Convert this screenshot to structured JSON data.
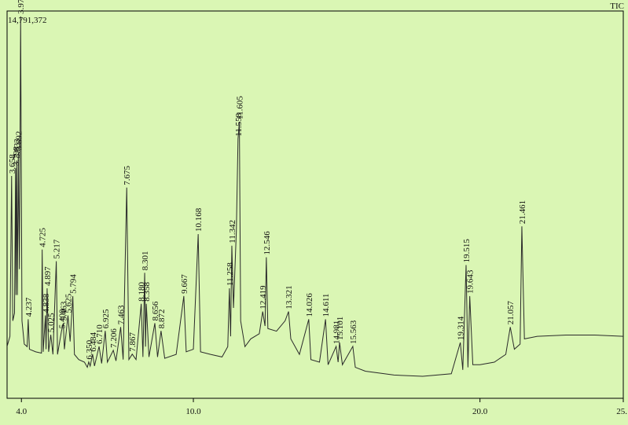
{
  "chart_data": {
    "type": "line",
    "x": [
      3.5,
      3.6,
      3.658,
      3.7,
      3.76,
      3.798,
      3.81,
      3.833,
      3.86,
      3.892,
      3.93,
      3.973,
      4.02,
      4.1,
      4.2,
      4.237,
      4.28,
      4.5,
      4.7,
      4.725,
      4.76,
      4.838,
      4.86,
      4.897,
      4.95,
      5.025,
      5.1,
      5.217,
      5.26,
      5.4,
      5.463,
      5.5,
      5.625,
      5.7,
      5.794,
      5.85,
      6.0,
      6.2,
      6.3,
      6.35,
      6.4,
      6.484,
      6.55,
      6.71,
      6.8,
      6.925,
      7.0,
      7.206,
      7.3,
      7.463,
      7.55,
      7.675,
      7.75,
      7.867,
      8.0,
      8.18,
      8.24,
      8.301,
      8.33,
      8.358,
      8.45,
      8.656,
      8.75,
      8.872,
      9.0,
      9.4,
      9.667,
      9.75,
      10.0,
      10.168,
      10.25,
      10.6,
      11.0,
      11.2,
      11.258,
      11.3,
      11.342,
      11.4,
      11.5,
      11.558,
      11.605,
      11.65,
      11.8,
      12.0,
      12.3,
      12.419,
      12.5,
      12.546,
      12.6,
      12.9,
      13.2,
      13.321,
      13.4,
      13.7,
      14.026,
      14.1,
      14.4,
      14.611,
      14.7,
      14.981,
      15.05,
      15.101,
      15.2,
      15.563,
      15.65,
      16.0,
      17.0,
      18.0,
      19.0,
      19.314,
      19.4,
      19.515,
      19.58,
      19.643,
      19.75,
      20.0,
      20.5,
      20.9,
      21.057,
      21.2,
      21.4,
      21.461,
      21.55,
      22.0,
      23.0,
      24.0,
      25.0
    ],
    "series": [
      {
        "name": "TIC",
        "color": "#2a2a2a",
        "values": [
          2010000,
          2400000,
          8610000,
          3000000,
          3300000,
          8910000,
          4000000,
          9210000,
          4000000,
          9510000,
          5000000,
          14791372,
          3000000,
          2100000,
          2000000,
          3060000,
          1900000,
          1800000,
          1750000,
          5760000,
          1800000,
          3210000,
          1900000,
          4260000,
          1800000,
          2460000,
          1700000,
          5310000,
          1700000,
          2610000,
          2910000,
          1900000,
          3210000,
          2200000,
          3960000,
          1700000,
          1500000,
          1400000,
          1200000,
          1410000,
          1250000,
          1710000,
          1250000,
          2010000,
          1350000,
          2610000,
          1400000,
          1860000,
          1450000,
          2760000,
          1500000,
          8160000,
          1500000,
          1710000,
          1500000,
          3660000,
          1600000,
          4860000,
          2000000,
          3660000,
          1600000,
          2910000,
          1600000,
          2610000,
          1550000,
          1700000,
          3960000,
          1800000,
          1900000,
          6360000,
          1800000,
          1700000,
          1600000,
          2000000,
          4260000,
          2400000,
          5910000,
          3500000,
          6500000,
          10050000,
          10710000,
          3000000,
          2000000,
          2300000,
          2500000,
          3360000,
          2800000,
          5460000,
          2700000,
          2600000,
          3000000,
          3360000,
          2300000,
          1700000,
          3060000,
          1500000,
          1400000,
          3060000,
          1300000,
          2010000,
          1400000,
          2160000,
          1300000,
          2010000,
          1200000,
          1050000,
          900000,
          850000,
          950000,
          2160000,
          1100000,
          5160000,
          1200000,
          3960000,
          1300000,
          1300000,
          1400000,
          1700000,
          2760000,
          1900000,
          2100000,
          6660000,
          2300000,
          2400000,
          2450000,
          2450000,
          2400000
        ]
      }
    ],
    "xlim": [
      3.5,
      25.0
    ],
    "ylim": [
      0,
      15000000
    ],
    "xticks": [
      {
        "value": 4,
        "label": "4.0"
      },
      {
        "value": 10,
        "label": "10.0"
      },
      {
        "value": 20,
        "label": "20.0"
      },
      {
        "value": 25,
        "label": "25."
      }
    ],
    "y_max": {
      "value": 14791372,
      "label": "14,791,372"
    },
    "legend": "top-right",
    "background": "#daf6b4",
    "annotations": [
      {
        "x": 3.658,
        "y": 8610000,
        "text": "3.658"
      },
      {
        "x": 3.798,
        "y": 8910000,
        "text": "3.798"
      },
      {
        "x": 3.833,
        "y": 9210000,
        "text": "3.833"
      },
      {
        "x": 3.892,
        "y": 9510000,
        "text": "3.892"
      },
      {
        "x": 3.973,
        "y": 14791372,
        "text": "3.973"
      },
      {
        "x": 4.237,
        "y": 3060000,
        "text": "4.237"
      },
      {
        "x": 4.725,
        "y": 5760000,
        "text": "4.725"
      },
      {
        "x": 4.838,
        "y": 3210000,
        "text": "4.838"
      },
      {
        "x": 4.897,
        "y": 4260000,
        "text": "4.897"
      },
      {
        "x": 5.025,
        "y": 2460000,
        "text": "5.025"
      },
      {
        "x": 5.217,
        "y": 5310000,
        "text": "5.217"
      },
      {
        "x": 5.4,
        "y": 2610000,
        "text": "5.400"
      },
      {
        "x": 5.463,
        "y": 2910000,
        "text": "5.463"
      },
      {
        "x": 5.625,
        "y": 3210000,
        "text": "5.625"
      },
      {
        "x": 5.794,
        "y": 3960000,
        "text": "5.794"
      },
      {
        "x": 6.35,
        "y": 1410000,
        "text": "6.350"
      },
      {
        "x": 6.484,
        "y": 1710000,
        "text": "6.484"
      },
      {
        "x": 6.71,
        "y": 2010000,
        "text": "6.710"
      },
      {
        "x": 6.925,
        "y": 2610000,
        "text": "6.925"
      },
      {
        "x": 7.206,
        "y": 1860000,
        "text": "7.206"
      },
      {
        "x": 7.463,
        "y": 2760000,
        "text": "7.463"
      },
      {
        "x": 7.675,
        "y": 8160000,
        "text": "7.675"
      },
      {
        "x": 7.867,
        "y": 1710000,
        "text": "7.867"
      },
      {
        "x": 8.18,
        "y": 3660000,
        "text": "8.180"
      },
      {
        "x": 8.301,
        "y": 4860000,
        "text": "8.301"
      },
      {
        "x": 8.358,
        "y": 3660000,
        "text": "8.358"
      },
      {
        "x": 8.656,
        "y": 2910000,
        "text": "8.656"
      },
      {
        "x": 8.872,
        "y": 2610000,
        "text": "8.872"
      },
      {
        "x": 9.667,
        "y": 3960000,
        "text": "9.667"
      },
      {
        "x": 10.168,
        "y": 6360000,
        "text": "10.168"
      },
      {
        "x": 11.258,
        "y": 4260000,
        "text": "11.258"
      },
      {
        "x": 11.342,
        "y": 5910000,
        "text": "11.342"
      },
      {
        "x": 11.558,
        "y": 10050000,
        "text": "11.558"
      },
      {
        "x": 11.605,
        "y": 10710000,
        "text": "11.605"
      },
      {
        "x": 12.419,
        "y": 3360000,
        "text": "12.419"
      },
      {
        "x": 12.546,
        "y": 5460000,
        "text": "12.546"
      },
      {
        "x": 13.321,
        "y": 3360000,
        "text": "13.321"
      },
      {
        "x": 14.026,
        "y": 3060000,
        "text": "14.026"
      },
      {
        "x": 14.611,
        "y": 3060000,
        "text": "14.611"
      },
      {
        "x": 14.981,
        "y": 2010000,
        "text": "14.981"
      },
      {
        "x": 15.101,
        "y": 2160000,
        "text": "15.101"
      },
      {
        "x": 15.563,
        "y": 2010000,
        "text": "15.563"
      },
      {
        "x": 19.314,
        "y": 2160000,
        "text": "19.314"
      },
      {
        "x": 19.515,
        "y": 5160000,
        "text": "19.515"
      },
      {
        "x": 19.643,
        "y": 3960000,
        "text": "19.643"
      },
      {
        "x": 21.057,
        "y": 2760000,
        "text": "21.057"
      },
      {
        "x": 21.461,
        "y": 6660000,
        "text": "21.461"
      }
    ]
  }
}
